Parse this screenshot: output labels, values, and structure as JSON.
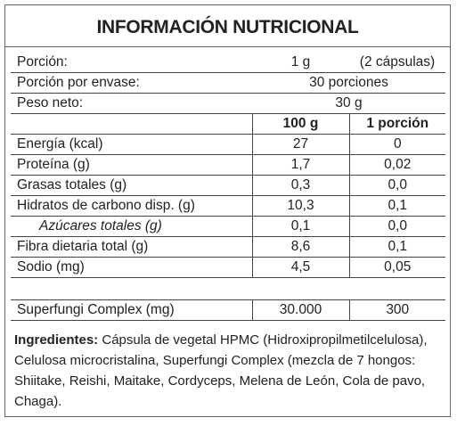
{
  "title": "INFORMACIÓN NUTRICIONAL",
  "serving": [
    [
      "Porción:",
      "1 g",
      "(2 cápsulas)"
    ],
    [
      "Porción por envase:",
      "30 porciones"
    ],
    [
      "Peso neto:",
      "30 g"
    ]
  ],
  "columns": [
    "100 g",
    "1 porción"
  ],
  "nutrients": [
    {
      "label": "Energía (kcal)",
      "values": [
        "27",
        "0"
      ]
    },
    {
      "label": "Proteína (g)",
      "values": [
        "1,7",
        "0,02"
      ]
    },
    {
      "label": "Grasas totales (g)",
      "values": [
        "0,3",
        "0,0"
      ]
    },
    {
      "label": "Hidratos de carbono disp. (g)",
      "values": [
        "10,3",
        "0,1"
      ]
    },
    {
      "label": "Azúcares totales (g)",
      "values": [
        "0,1",
        "0,0"
      ],
      "sub": true
    },
    {
      "label": "Fibra dietaria total (g)",
      "values": [
        "8,6",
        "0,1"
      ]
    },
    {
      "label": "Sodio (mg)",
      "values": [
        "4,5",
        "0,05"
      ]
    }
  ],
  "complex": {
    "label": "Superfungi Complex (mg)",
    "values": [
      "30.000",
      "300"
    ]
  },
  "ingredients": {
    "label": "Ingredientes:",
    "text": "Cápsula de vegetal HPMC (Hidroxipropilmetilcelulosa), Celulosa microcristalina, Superfungi Complex (mezcla de 7 hongos: Shiitake, Reishi, Maitake, Cordyceps, Melena de León, Cola de pavo, Chaga)."
  }
}
